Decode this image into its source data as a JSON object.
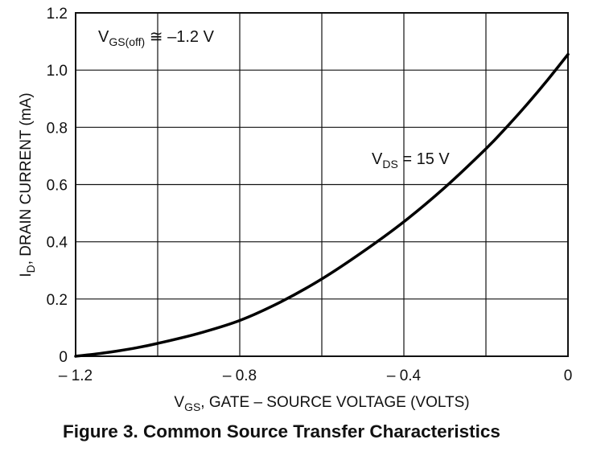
{
  "figure_caption": "Figure 3. Common Source Transfer Characteristics",
  "chart_data": {
    "type": "line",
    "title": "",
    "xlabel_main": "V",
    "xlabel_sub": "GS",
    "xlabel_rest": ", GATE – SOURCE VOLTAGE (VOLTS)",
    "ylabel_main": "I",
    "ylabel_sub": "D",
    "ylabel_rest": ", DRAIN CURRENT (mA)",
    "xlim": [
      -1.2,
      0
    ],
    "ylim": [
      0,
      1.2
    ],
    "x_ticks": [
      -1.2,
      -0.8,
      -0.4,
      0
    ],
    "x_tick_labels": [
      "– 1.2",
      "– 0.8",
      "– 0.4",
      "0"
    ],
    "y_ticks": [
      0,
      0.2,
      0.4,
      0.6,
      0.8,
      1.0,
      1.2
    ],
    "y_tick_labels": [
      "0",
      "0.2",
      "0.4",
      "0.6",
      "0.8",
      "1.0",
      "1.2"
    ],
    "grid": true,
    "grid_step_x": 0.2,
    "grid_step_y": 0.2,
    "series": [
      {
        "x": [
          -1.2,
          -1.15,
          -1.1,
          -1.05,
          -1.0,
          -0.9,
          -0.8,
          -0.7,
          -0.6,
          -0.5,
          -0.4,
          -0.3,
          -0.2,
          -0.15,
          -0.1,
          -0.05,
          0.0
        ],
        "y": [
          0.0,
          0.008,
          0.018,
          0.03,
          0.045,
          0.08,
          0.125,
          0.19,
          0.27,
          0.365,
          0.47,
          0.59,
          0.725,
          0.8,
          0.88,
          0.965,
          1.055
        ]
      }
    ],
    "annotations": {
      "vgs_off": {
        "main": "V",
        "sub": "GS(off)",
        "rest": " ≅  –1.2 V"
      },
      "vds": {
        "main": "V",
        "sub": "DS",
        "rest": " = 15 V"
      }
    }
  }
}
